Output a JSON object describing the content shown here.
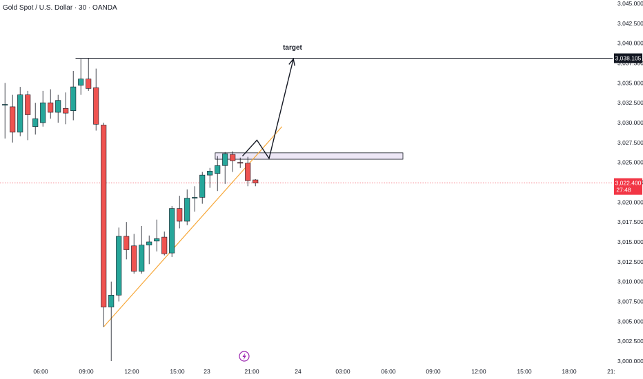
{
  "header": {
    "title": "Gold Spot / U.S. Dollar · 30 · OANDA"
  },
  "colors": {
    "up": "#26a69a",
    "down": "#ef5350",
    "trendline": "#f7a83a",
    "price_tag": "#f23645",
    "zone_fill": "#ede7f6",
    "zone_border": "#131722",
    "event_icon": "#9c27b0"
  },
  "chart_data": {
    "type": "candlestick",
    "title": "Gold Spot / U.S. Dollar · 30 · OANDA",
    "ylim": [
      3000,
      3045
    ],
    "y_ticks": [
      "3,000.000",
      "3,002.500",
      "3,005.000",
      "3,007.500",
      "3,010.000",
      "3,012.500",
      "3,015.000",
      "3,017.500",
      "3,020.000",
      "3,022.500",
      "3,025.000",
      "3,027.500",
      "3,030.000",
      "3,032.500",
      "3,035.000",
      "3,037.500",
      "3,040.000",
      "3,042.500",
      "3,045.000"
    ],
    "x_ticks": [
      "06:00",
      "09:00",
      "12:00",
      "15:00",
      "23",
      "21:00",
      "24",
      "03:00",
      "06:00",
      "09:00",
      "12:00",
      "15:00",
      "18:00",
      "21:"
    ],
    "candles": [
      {
        "o": 3032.3,
        "h": 3035.0,
        "l": 3028.0,
        "c": 3032.3
      },
      {
        "o": 3032.0,
        "h": 3033.5,
        "l": 3027.5,
        "c": 3028.8
      },
      {
        "o": 3028.8,
        "h": 3034.5,
        "l": 3028.3,
        "c": 3033.5
      },
      {
        "o": 3033.5,
        "h": 3034.0,
        "l": 3027.8,
        "c": 3031.0
      },
      {
        "o": 3029.5,
        "h": 3032.5,
        "l": 3028.5,
        "c": 3030.5
      },
      {
        "o": 3030.0,
        "h": 3034.0,
        "l": 3029.5,
        "c": 3032.5
      },
      {
        "o": 3032.5,
        "h": 3034.2,
        "l": 3030.5,
        "c": 3031.3
      },
      {
        "o": 3031.3,
        "h": 3033.5,
        "l": 3030.0,
        "c": 3032.8
      },
      {
        "o": 3031.8,
        "h": 3033.8,
        "l": 3029.8,
        "c": 3031.2
      },
      {
        "o": 3031.5,
        "h": 3036.5,
        "l": 3030.3,
        "c": 3034.5
      },
      {
        "o": 3034.7,
        "h": 3038.0,
        "l": 3033.5,
        "c": 3035.5
      },
      {
        "o": 3035.5,
        "h": 3038.1,
        "l": 3034.0,
        "c": 3034.3
      },
      {
        "o": 3034.4,
        "h": 3036.8,
        "l": 3029.0,
        "c": 3029.8
      },
      {
        "o": 3029.7,
        "h": 3030.0,
        "l": 3004.3,
        "c": 3006.8
      },
      {
        "o": 3006.8,
        "h": 3010.0,
        "l": 3000.0,
        "c": 3008.3
      },
      {
        "o": 3008.3,
        "h": 3016.8,
        "l": 3007.5,
        "c": 3015.7
      },
      {
        "o": 3015.7,
        "h": 3017.5,
        "l": 3012.8,
        "c": 3014.0
      },
      {
        "o": 3014.5,
        "h": 3016.0,
        "l": 3011.0,
        "c": 3011.3
      },
      {
        "o": 3011.3,
        "h": 3017.0,
        "l": 3011.0,
        "c": 3014.6
      },
      {
        "o": 3014.6,
        "h": 3015.8,
        "l": 3012.2,
        "c": 3015.0
      },
      {
        "o": 3015.1,
        "h": 3017.8,
        "l": 3013.8,
        "c": 3015.4
      },
      {
        "o": 3015.6,
        "h": 3016.3,
        "l": 3013.3,
        "c": 3013.5
      },
      {
        "o": 3013.6,
        "h": 3019.5,
        "l": 3013.1,
        "c": 3019.2
      },
      {
        "o": 3019.2,
        "h": 3020.8,
        "l": 3016.7,
        "c": 3017.6
      },
      {
        "o": 3017.6,
        "h": 3021.6,
        "l": 3017.1,
        "c": 3020.5
      },
      {
        "o": 3020.5,
        "h": 3022.0,
        "l": 3018.8,
        "c": 3020.6
      },
      {
        "o": 3020.6,
        "h": 3023.8,
        "l": 3019.8,
        "c": 3023.4
      },
      {
        "o": 3023.4,
        "h": 3024.3,
        "l": 3021.8,
        "c": 3023.9
      },
      {
        "o": 3023.6,
        "h": 3025.8,
        "l": 3021.4,
        "c": 3024.6
      },
      {
        "o": 3024.6,
        "h": 3026.3,
        "l": 3022.3,
        "c": 3026.1
      },
      {
        "o": 3026.0,
        "h": 3026.4,
        "l": 3023.8,
        "c": 3025.2
      },
      {
        "o": 3025.0,
        "h": 3025.6,
        "l": 3024.3,
        "c": 3024.9
      },
      {
        "o": 3024.9,
        "h": 3025.7,
        "l": 3022.0,
        "c": 3022.7
      },
      {
        "o": 3022.8,
        "h": 3022.9,
        "l": 3022.0,
        "c": 3022.4
      }
    ],
    "annotations": {
      "target_label": "target",
      "target_price": "3,038.105",
      "current_price": "3,022.400",
      "countdown": "27:48",
      "zone": [
        3025.4,
        3026.2
      ],
      "target_level": 3038.105,
      "trendline": [
        {
          "i": 13,
          "p": 3004.3
        },
        {
          "i": 36.5,
          "p": 3029.5
        }
      ],
      "projection": [
        {
          "i": 31.3,
          "p": 3025.8
        },
        {
          "i": 33.2,
          "p": 3027.8
        },
        {
          "i": 34.8,
          "p": 3025.5
        },
        {
          "i": 38.0,
          "p": 3038.0
        }
      ],
      "event_icon": "lightning-icon"
    }
  }
}
